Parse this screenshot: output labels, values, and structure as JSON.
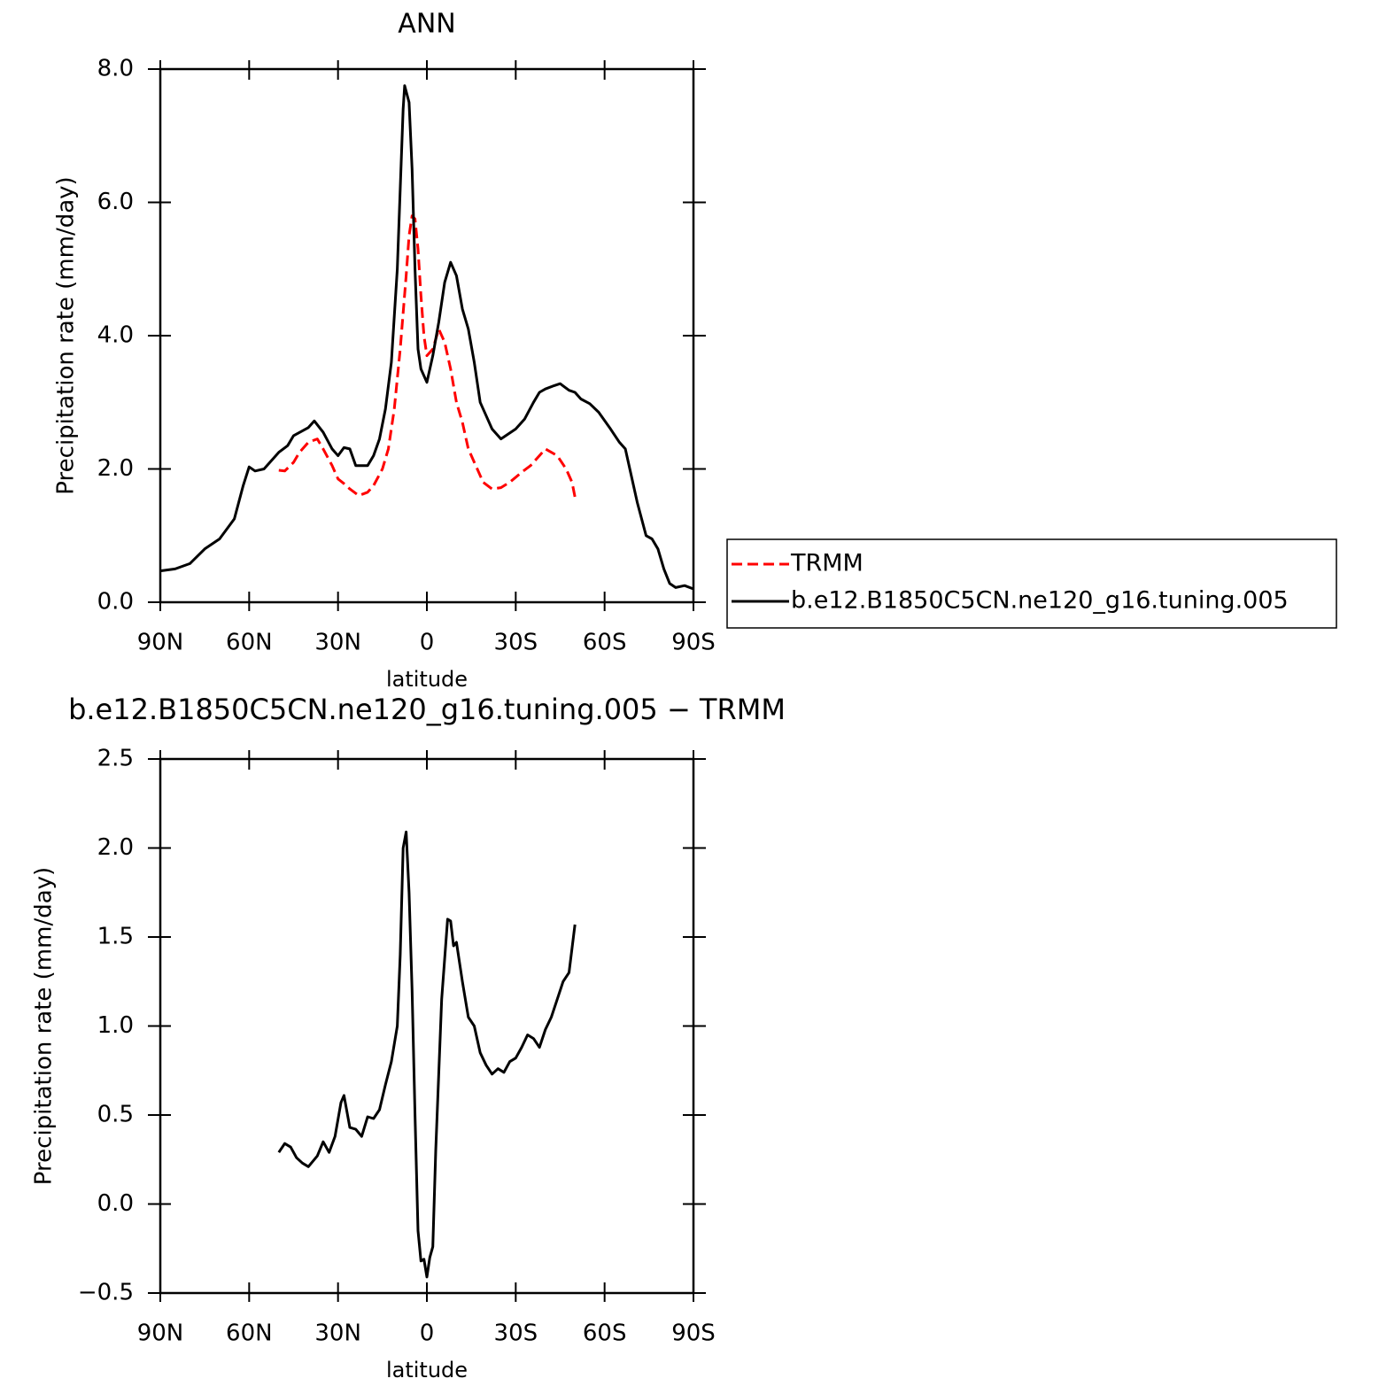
{
  "chart_data": [
    {
      "type": "line",
      "title": "ANN",
      "xlabel": "latitude",
      "ylabel": "Precipitation rate (mm/day)",
      "xlim": [
        90,
        -90
      ],
      "xticks": [
        {
          "value": 90,
          "label": "90N"
        },
        {
          "value": 60,
          "label": "60N"
        },
        {
          "value": 30,
          "label": "30N"
        },
        0,
        {
          "value": -30,
          "label": "30S"
        },
        {
          "value": -60,
          "label": "60S"
        },
        {
          "value": -90,
          "label": "90S"
        }
      ],
      "ylim": [
        0,
        8
      ],
      "yticks": [
        {
          "value": 0,
          "label": "0.0"
        },
        {
          "value": 2,
          "label": "2.0"
        },
        {
          "value": 4,
          "label": "4.0"
        },
        {
          "value": 6,
          "label": "6.0"
        },
        {
          "value": 8,
          "label": "8.0"
        }
      ],
      "legend": "right",
      "series": [
        {
          "name": "TRMM",
          "color": "#ff0000",
          "dashed": true,
          "x": [
            50,
            48,
            45,
            43,
            40,
            37,
            35,
            32,
            30,
            28,
            26,
            23,
            20,
            18,
            15,
            13,
            11,
            9,
            7,
            6,
            5,
            4,
            3,
            2,
            1,
            0,
            -2,
            -4,
            -6,
            -8,
            -10,
            -12,
            -14,
            -17,
            -19,
            -22,
            -25,
            -28,
            -32,
            -35,
            -38,
            -40,
            -42,
            -44,
            -47,
            -49,
            -50
          ],
          "values": [
            1.98,
            1.97,
            2.1,
            2.25,
            2.4,
            2.45,
            2.3,
            2.05,
            1.85,
            1.78,
            1.7,
            1.6,
            1.65,
            1.75,
            2.0,
            2.3,
            2.9,
            3.8,
            4.9,
            5.5,
            5.8,
            5.75,
            5.3,
            4.6,
            4.0,
            3.7,
            3.8,
            4.1,
            3.9,
            3.5,
            3.0,
            2.7,
            2.3,
            2.0,
            1.8,
            1.7,
            1.72,
            1.8,
            1.95,
            2.05,
            2.2,
            2.3,
            2.25,
            2.2,
            2.0,
            1.8,
            1.58
          ]
        },
        {
          "name": "b.e12.B1850C5CN.ne120_g16.tuning.005",
          "color": "#000000",
          "dashed": false,
          "x": [
            90,
            85,
            80,
            75,
            70,
            65,
            62,
            60,
            58,
            55,
            50,
            47,
            45,
            40,
            38,
            35,
            32,
            30,
            28,
            26,
            24,
            20,
            18,
            16,
            14,
            12,
            10,
            9,
            8,
            7.5,
            6,
            5,
            4,
            3,
            2,
            0,
            -2,
            -4,
            -6,
            -8,
            -10,
            -12,
            -14,
            -16,
            -18,
            -20,
            -22,
            -25,
            -30,
            -33,
            -36,
            -38,
            -40,
            -43,
            -45,
            -48,
            -50,
            -52,
            -55,
            -58,
            -62,
            -65,
            -67,
            -69,
            -71,
            -74,
            -76,
            -78,
            -80,
            -82,
            -84,
            -87,
            -90
          ],
          "values": [
            0.47,
            0.5,
            0.58,
            0.8,
            0.95,
            1.25,
            1.75,
            2.03,
            1.97,
            2.0,
            2.25,
            2.35,
            2.5,
            2.62,
            2.72,
            2.55,
            2.3,
            2.2,
            2.32,
            2.3,
            2.05,
            2.05,
            2.2,
            2.45,
            2.9,
            3.6,
            5.0,
            6.2,
            7.4,
            7.75,
            7.5,
            6.5,
            5.0,
            3.8,
            3.5,
            3.3,
            3.7,
            4.2,
            4.8,
            5.1,
            4.9,
            4.4,
            4.1,
            3.6,
            3.0,
            2.8,
            2.6,
            2.45,
            2.6,
            2.75,
            3.0,
            3.15,
            3.2,
            3.25,
            3.28,
            3.18,
            3.15,
            3.05,
            2.98,
            2.85,
            2.6,
            2.4,
            2.3,
            1.9,
            1.5,
            1.0,
            0.95,
            0.8,
            0.5,
            0.28,
            0.22,
            0.25,
            0.2
          ]
        }
      ]
    },
    {
      "type": "line",
      "title": "b.e12.B1850C5CN.ne120_g16.tuning.005 − TRMM",
      "xlabel": "latitude",
      "ylabel": "Precipitation rate (mm/day)",
      "xlim": [
        90,
        -90
      ],
      "xticks": [
        {
          "value": 90,
          "label": "90N"
        },
        {
          "value": 60,
          "label": "60N"
        },
        {
          "value": 30,
          "label": "30N"
        },
        0,
        {
          "value": -30,
          "label": "30S"
        },
        {
          "value": -60,
          "label": "60S"
        },
        {
          "value": -90,
          "label": "90S"
        }
      ],
      "ylim": [
        -0.5,
        2.5
      ],
      "yticks": [
        {
          "value": -0.5,
          "label": "−0.5"
        },
        {
          "value": 0,
          "label": "0.0"
        },
        0.5,
        {
          "value": 1,
          "label": "1.0"
        },
        1.5,
        {
          "value": 2,
          "label": "2.0"
        },
        2.5
      ],
      "series": [
        {
          "color": "#000000",
          "dashed": false,
          "x": [
            50,
            48,
            46,
            44,
            42,
            40,
            37,
            35,
            33,
            31,
            29,
            28,
            26,
            24,
            22,
            20,
            18,
            16,
            14,
            12,
            10,
            9,
            8,
            7,
            6,
            5,
            4,
            3,
            2,
            1,
            0,
            -1,
            -2,
            -3,
            -5,
            -7,
            -8,
            -9,
            -10,
            -12,
            -14,
            -16,
            -18,
            -20,
            -22,
            -24,
            -26,
            -28,
            -30,
            -32,
            -34,
            -36,
            -38,
            -40,
            -42,
            -44,
            -46,
            -48,
            -50
          ],
          "values": [
            0.29,
            0.34,
            0.32,
            0.26,
            0.23,
            0.21,
            0.27,
            0.35,
            0.29,
            0.38,
            0.57,
            0.61,
            0.43,
            0.42,
            0.38,
            0.49,
            0.48,
            0.53,
            0.67,
            0.8,
            1.0,
            1.4,
            2.0,
            2.09,
            1.75,
            1.2,
            0.5,
            -0.15,
            -0.32,
            -0.31,
            -0.41,
            -0.3,
            -0.24,
            0.3,
            1.15,
            1.6,
            1.59,
            1.45,
            1.47,
            1.25,
            1.05,
            1.0,
            0.85,
            0.78,
            0.73,
            0.76,
            0.74,
            0.8,
            0.82,
            0.88,
            0.95,
            0.93,
            0.88,
            0.98,
            1.05,
            1.15,
            1.25,
            1.3,
            1.57
          ]
        }
      ]
    }
  ]
}
